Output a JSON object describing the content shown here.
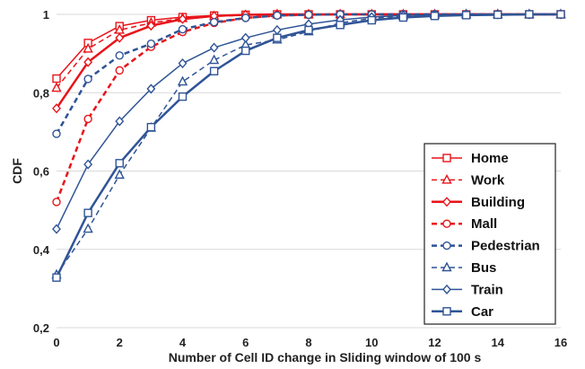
{
  "chart_data": {
    "type": "line",
    "title": "",
    "xlabel": "Number of Cell ID change in Sliding window of 100 s",
    "ylabel": "CDF",
    "x": [
      0,
      1,
      2,
      3,
      4,
      5,
      6,
      7,
      8,
      9,
      10,
      11,
      12,
      13,
      14,
      15,
      16
    ],
    "xlim": [
      0,
      16
    ],
    "ylim": [
      0.2,
      1
    ],
    "x_ticks": [
      "0",
      "2",
      "4",
      "6",
      "8",
      "10",
      "12",
      "14",
      "16"
    ],
    "y_ticks": [
      "0,2",
      "0,4",
      "0,6",
      "0,8",
      "1"
    ],
    "grid": "horizontal",
    "legend_position": "bottom-right",
    "series": [
      {
        "name": "Home",
        "color": "#e8141a",
        "marker": "square",
        "dash": "solid",
        "width": 1.5,
        "values": [
          0.836,
          0.927,
          0.97,
          0.985,
          0.993,
          0.997,
          0.999,
          1.0,
          1.0,
          1.0,
          1.0,
          1.0,
          1.0,
          1.0,
          1.0,
          1.0,
          1.0
        ]
      },
      {
        "name": "Work",
        "color": "#e8141a",
        "marker": "triangle",
        "dash": "dashed",
        "width": 1.5,
        "values": [
          0.812,
          0.912,
          0.96,
          0.978,
          0.99,
          0.995,
          0.998,
          1.0,
          1.0,
          1.0,
          1.0,
          1.0,
          1.0,
          1.0,
          1.0,
          1.0,
          1.0
        ]
      },
      {
        "name": "Building",
        "color": "#e8141a",
        "marker": "diamond",
        "dash": "solid",
        "width": 2.5,
        "values": [
          0.76,
          0.878,
          0.94,
          0.971,
          0.988,
          0.996,
          0.999,
          1.0,
          1.0,
          1.0,
          1.0,
          1.0,
          1.0,
          1.0,
          1.0,
          1.0,
          1.0
        ]
      },
      {
        "name": "Mall",
        "color": "#e8141a",
        "marker": "circle",
        "dash": "dashed",
        "width": 2.5,
        "values": [
          0.521,
          0.733,
          0.857,
          0.917,
          0.955,
          0.978,
          0.991,
          0.997,
          0.999,
          1.0,
          1.0,
          1.0,
          1.0,
          1.0,
          1.0,
          1.0,
          1.0
        ]
      },
      {
        "name": "Pedestrian",
        "color": "#2f5496",
        "marker": "circle",
        "dash": "dashed",
        "width": 2.5,
        "values": [
          0.695,
          0.835,
          0.895,
          0.925,
          0.962,
          0.98,
          0.991,
          0.997,
          0.999,
          1.0,
          1.0,
          1.0,
          1.0,
          1.0,
          1.0,
          1.0,
          1.0
        ]
      },
      {
        "name": "Bus",
        "color": "#2f5496",
        "marker": "triangle",
        "dash": "dashed",
        "width": 1.5,
        "values": [
          0.335,
          0.452,
          0.59,
          0.71,
          0.828,
          0.883,
          0.922,
          0.935,
          0.956,
          0.978,
          0.99,
          0.996,
          0.999,
          1.0,
          1.0,
          1.0,
          1.0
        ]
      },
      {
        "name": "Train",
        "color": "#2f5496",
        "marker": "diamond",
        "dash": "solid",
        "width": 1.5,
        "values": [
          0.452,
          0.617,
          0.727,
          0.81,
          0.875,
          0.915,
          0.94,
          0.96,
          0.975,
          0.986,
          0.993,
          0.997,
          0.999,
          1.0,
          1.0,
          1.0,
          1.0
        ]
      },
      {
        "name": "Car",
        "color": "#2f5496",
        "marker": "square",
        "dash": "solid",
        "width": 2.5,
        "values": [
          0.328,
          0.493,
          0.62,
          0.712,
          0.79,
          0.855,
          0.907,
          0.94,
          0.96,
          0.973,
          0.985,
          0.992,
          0.996,
          0.998,
          0.999,
          1.0,
          1.0
        ]
      }
    ]
  }
}
